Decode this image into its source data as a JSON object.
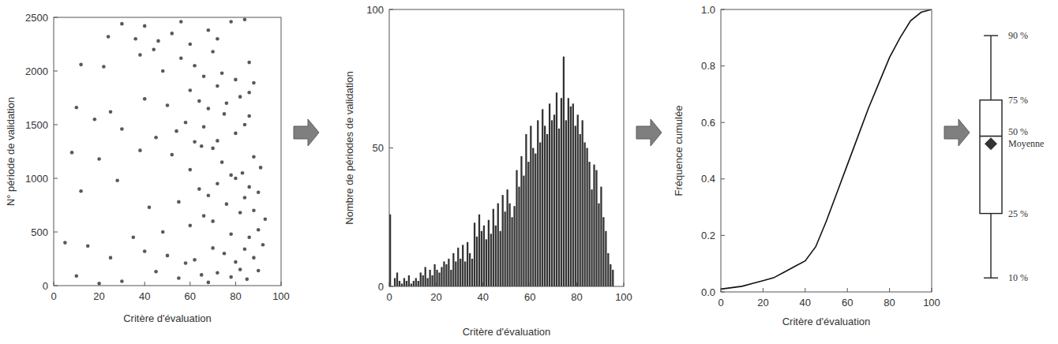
{
  "chart_data": [
    {
      "type": "scatter",
      "xlabel": "Critère d'évaluation",
      "ylabel": "N° période de validation",
      "color": "#222222",
      "xlim": [
        0,
        100
      ],
      "xticks": [
        0,
        20,
        40,
        60,
        80,
        100
      ],
      "ylim": [
        0,
        2500
      ],
      "yticks": [
        0,
        500,
        1000,
        1500,
        2000,
        2500
      ],
      "x": [
        85,
        78,
        72,
        65,
        90,
        55,
        45,
        30,
        20,
        10,
        82,
        68,
        80,
        88,
        75,
        62,
        70,
        50,
        40,
        92,
        84,
        58,
        25,
        15,
        86,
        90,
        78,
        70,
        60,
        93,
        82,
        48,
        35,
        5,
        66,
        88,
        76,
        84,
        64,
        72,
        90,
        55,
        42,
        28,
        80,
        68,
        12,
        86,
        83,
        91,
        74,
        60,
        52,
        88,
        70,
        38,
        20,
        8,
        78,
        65,
        72,
        80,
        66,
        58,
        86,
        75,
        45,
        30,
        62,
        84,
        18,
        54,
        68,
        76,
        82,
        88,
        60,
        50,
        40,
        72,
        25,
        86,
        64,
        10,
        80,
        74,
        62,
        56,
        48,
        38,
        70,
        86,
        22,
        12,
        66,
        44,
        60,
        72,
        52,
        40,
        30,
        78,
        68,
        46,
        24,
        84,
        56,
        36
      ],
      "values": [
        60,
        80,
        120,
        100,
        140,
        70,
        130,
        40,
        20,
        90,
        150,
        30,
        220,
        260,
        300,
        240,
        350,
        280,
        320,
        380,
        340,
        210,
        260,
        370,
        450,
        520,
        480,
        600,
        560,
        620,
        680,
        500,
        450,
        400,
        650,
        700,
        760,
        820,
        900,
        950,
        870,
        780,
        730,
        980,
        1000,
        840,
        880,
        920,
        1050,
        1100,
        1150,
        1080,
        1220,
        1200,
        1280,
        1260,
        1180,
        1240,
        1030,
        1300,
        1350,
        1420,
        1480,
        1520,
        1580,
        1600,
        1380,
        1460,
        1340,
        1500,
        1550,
        1440,
        1650,
        1700,
        1760,
        1890,
        1820,
        1680,
        1740,
        1860,
        1620,
        1800,
        1720,
        1660,
        1920,
        1980,
        2050,
        2120,
        2000,
        2150,
        2180,
        2080,
        2040,
        2060,
        1950,
        2200,
        2250,
        2300,
        2350,
        2420,
        2440,
        2460,
        2380,
        2280,
        2320,
        2480,
        2460,
        2300
      ]
    },
    {
      "type": "histogram",
      "xlabel": "Critère d'évaluation",
      "ylabel": "Nombre de périodes de validation",
      "color": "#333333",
      "xlim": [
        0,
        100
      ],
      "xticks": [
        0,
        20,
        40,
        60,
        80,
        100
      ],
      "ylim": [
        0,
        100
      ],
      "yticks": [
        0,
        50,
        100
      ],
      "bins": [
        0,
        1,
        2,
        3,
        4,
        5,
        6,
        7,
        8,
        9,
        10,
        11,
        12,
        13,
        14,
        15,
        16,
        17,
        18,
        19,
        20,
        21,
        22,
        23,
        24,
        25,
        26,
        27,
        28,
        29,
        30,
        31,
        32,
        33,
        34,
        35,
        36,
        37,
        38,
        39,
        40,
        41,
        42,
        43,
        44,
        45,
        46,
        47,
        48,
        49,
        50,
        51,
        52,
        53,
        54,
        55,
        56,
        57,
        58,
        59,
        60,
        61,
        62,
        63,
        64,
        65,
        66,
        67,
        68,
        69,
        70,
        71,
        72,
        73,
        74,
        75,
        76,
        77,
        78,
        79,
        80,
        81,
        82,
        83,
        84,
        85,
        86,
        87,
        88,
        89,
        90,
        91,
        92,
        93,
        94,
        95,
        96
      ],
      "values": [
        26,
        0,
        3,
        5,
        2,
        1,
        3,
        2,
        4,
        1,
        2,
        3,
        2,
        5,
        4,
        7,
        3,
        6,
        4,
        8,
        6,
        5,
        7,
        9,
        8,
        10,
        6,
        12,
        9,
        14,
        10,
        15,
        9,
        16,
        12,
        10,
        23,
        18,
        26,
        20,
        22,
        17,
        24,
        19,
        28,
        22,
        30,
        20,
        33,
        27,
        35,
        30,
        25,
        29,
        42,
        36,
        47,
        40,
        55,
        45,
        58,
        50,
        48,
        60,
        52,
        64,
        58,
        55,
        66,
        60,
        62,
        70,
        57,
        68,
        83,
        60,
        68,
        65,
        66,
        58,
        62,
        55,
        60,
        52,
        50,
        45,
        35,
        44,
        42,
        30,
        36,
        25,
        20,
        12,
        8,
        6
      ]
    },
    {
      "type": "line",
      "xlabel": "Critère d'évaluation",
      "ylabel": "Fréquence cumulée",
      "color": "#111111",
      "xlim": [
        0,
        100
      ],
      "xticks": [
        0,
        20,
        40,
        60,
        80,
        100
      ],
      "ylim": [
        0,
        1
      ],
      "yticks": [
        {
          "value": 0,
          "label": "0.0"
        },
        0.2,
        0.4,
        0.6,
        0.8,
        {
          "value": 1,
          "label": "1.0"
        }
      ],
      "x": [
        0,
        5,
        10,
        15,
        20,
        25,
        30,
        35,
        40,
        45,
        50,
        55,
        60,
        65,
        70,
        75,
        80,
        85,
        90,
        95,
        100
      ],
      "values": [
        0.01,
        0.015,
        0.02,
        0.03,
        0.04,
        0.05,
        0.07,
        0.09,
        0.11,
        0.16,
        0.25,
        0.35,
        0.45,
        0.55,
        0.65,
        0.74,
        0.83,
        0.9,
        0.96,
        0.99,
        1.0
      ]
    },
    {
      "type": "box",
      "tick_labels": false,
      "color": "#222222",
      "ylim": [
        33,
        91
      ],
      "percentile_labels": [
        "10 %",
        "25 %",
        "50 %",
        "75 %",
        "90 %"
      ],
      "values": [
        40,
        52.5,
        67.5,
        74.5,
        87
      ],
      "mean": 66,
      "mean_label": "Moyenne"
    }
  ]
}
